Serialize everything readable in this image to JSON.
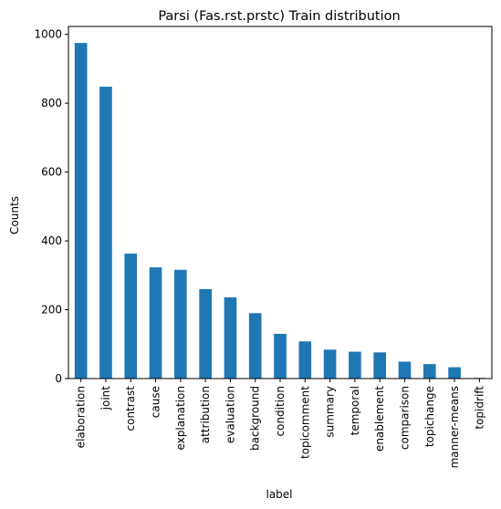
{
  "chart_data": {
    "type": "bar",
    "title": "Parsi (Fas.rst.prstc) Train distribution",
    "xlabel": "label",
    "ylabel": "Counts",
    "categories": [
      "elaboration",
      "joint",
      "contrast",
      "cause",
      "explanation",
      "attribution",
      "evaluation",
      "background",
      "condition",
      "topicomment",
      "summary",
      "temporal",
      "enablement",
      "comparison",
      "topichange",
      "manner-means",
      "topidrift"
    ],
    "values": [
      975,
      848,
      363,
      323,
      316,
      260,
      236,
      190,
      130,
      108,
      84,
      78,
      76,
      49,
      42,
      33,
      2
    ],
    "ylim": [
      0,
      1023
    ],
    "yticks": [
      0,
      200,
      400,
      600,
      800,
      1000
    ],
    "bar_color": "#1f77b4",
    "grid": false,
    "legend": "none"
  }
}
